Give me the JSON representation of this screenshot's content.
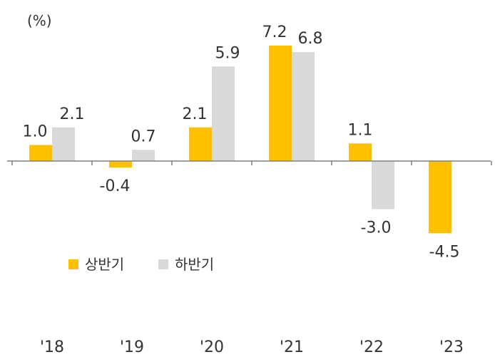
{
  "chart_data": {
    "type": "bar",
    "unit_label": "(%)",
    "categories": [
      "'18",
      "'19",
      "'20",
      "'21",
      "'22",
      "'23"
    ],
    "series": [
      {
        "name": "상반기",
        "color": "#FFC000",
        "values": [
          1.0,
          -0.4,
          2.1,
          7.2,
          1.1,
          -4.5
        ]
      },
      {
        "name": "하반기",
        "color": "#D9D9D9",
        "values": [
          2.1,
          0.7,
          5.9,
          6.8,
          -3.0,
          null
        ]
      }
    ],
    "data_labels": [
      [
        "1.0",
        "-0.4",
        "2.1",
        "7.2",
        "1.1",
        "-4.5"
      ],
      [
        "2.1",
        "0.7",
        "5.9",
        "6.8",
        "-3.0",
        ""
      ]
    ],
    "ylim": [
      -4.5,
      7.2
    ],
    "grid": false,
    "legend_position": "lower-left"
  }
}
